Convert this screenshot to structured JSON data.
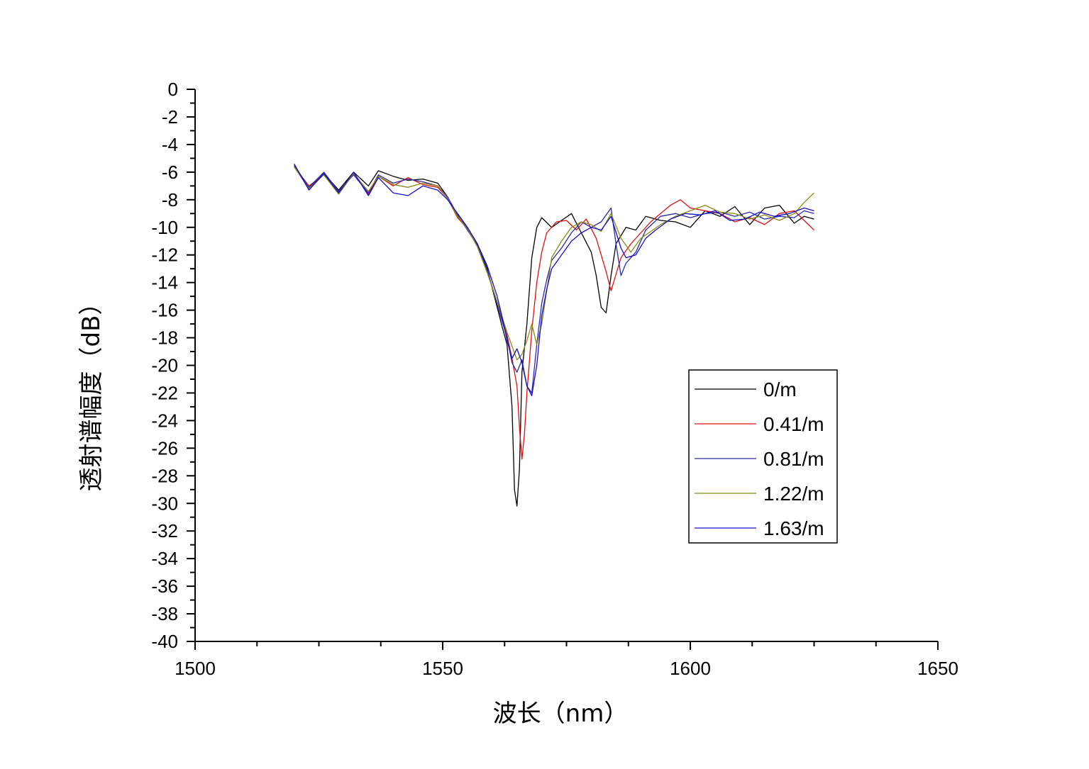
{
  "chart_data": {
    "type": "line",
    "title": "",
    "xlabel": "波长（nm）",
    "ylabel": "透射谱幅度（dB）",
    "xlim": [
      1500,
      1650
    ],
    "ylim": [
      -40,
      0
    ],
    "xticks": [
      "1500",
      "1550",
      "1600",
      "1650"
    ],
    "yticks": [
      "0",
      "-2",
      "-4",
      "-6",
      "-8",
      "-10",
      "-12",
      "-14",
      "-16",
      "-18",
      "-20",
      "-22",
      "-24",
      "-26",
      "-28",
      "-30",
      "-32",
      "-34",
      "-36",
      "-38",
      "-40"
    ],
    "grid": false,
    "legend_position": "right",
    "series": [
      {
        "name": "0/m",
        "color": "#000000",
        "points": [
          [
            1520,
            -5.6
          ],
          [
            1523,
            -7.2
          ],
          [
            1526,
            -6.1
          ],
          [
            1529,
            -7.3
          ],
          [
            1532,
            -6.0
          ],
          [
            1535,
            -7.0
          ],
          [
            1537,
            -5.9
          ],
          [
            1540,
            -6.3
          ],
          [
            1543,
            -6.6
          ],
          [
            1546,
            -6.5
          ],
          [
            1549,
            -6.8
          ],
          [
            1551,
            -7.8
          ],
          [
            1553,
            -9.2
          ],
          [
            1555,
            -10.0
          ],
          [
            1557,
            -11.2
          ],
          [
            1559,
            -13.0
          ],
          [
            1561,
            -15.8
          ],
          [
            1562,
            -17.2
          ],
          [
            1563,
            -18.5
          ],
          [
            1564,
            -23.0
          ],
          [
            1564.5,
            -29.0
          ],
          [
            1565,
            -30.2
          ],
          [
            1565.5,
            -27.5
          ],
          [
            1566,
            -20.5
          ],
          [
            1567,
            -17.0
          ],
          [
            1568,
            -12.2
          ],
          [
            1569,
            -10.0
          ],
          [
            1570,
            -9.3
          ],
          [
            1572,
            -10.0
          ],
          [
            1574,
            -9.5
          ],
          [
            1576,
            -9.0
          ],
          [
            1578,
            -10.4
          ],
          [
            1580,
            -11.8
          ],
          [
            1581,
            -13.5
          ],
          [
            1582,
            -15.8
          ],
          [
            1583,
            -16.2
          ],
          [
            1584,
            -13.5
          ],
          [
            1585,
            -11.2
          ],
          [
            1587,
            -10.0
          ],
          [
            1589,
            -10.2
          ],
          [
            1591,
            -9.2
          ],
          [
            1594,
            -9.5
          ],
          [
            1597,
            -9.6
          ],
          [
            1600,
            -10.0
          ],
          [
            1603,
            -8.8
          ],
          [
            1606,
            -9.2
          ],
          [
            1609,
            -8.5
          ],
          [
            1612,
            -9.8
          ],
          [
            1615,
            -8.6
          ],
          [
            1618,
            -8.4
          ],
          [
            1621,
            -9.7
          ],
          [
            1623,
            -9.2
          ],
          [
            1625,
            -9.4
          ]
        ]
      },
      {
        "name": "0.41/m",
        "color": "#e01010",
        "points": [
          [
            1520,
            -5.6
          ],
          [
            1523,
            -7.0
          ],
          [
            1526,
            -6.2
          ],
          [
            1529,
            -7.5
          ],
          [
            1532,
            -6.1
          ],
          [
            1535,
            -7.6
          ],
          [
            1537,
            -6.3
          ],
          [
            1540,
            -7.0
          ],
          [
            1543,
            -6.4
          ],
          [
            1546,
            -6.9
          ],
          [
            1549,
            -7.1
          ],
          [
            1551,
            -7.9
          ],
          [
            1553,
            -9.3
          ],
          [
            1555,
            -10.1
          ],
          [
            1557,
            -11.4
          ],
          [
            1559,
            -13.2
          ],
          [
            1561,
            -15.4
          ],
          [
            1562,
            -16.6
          ],
          [
            1563,
            -17.8
          ],
          [
            1564,
            -19.5
          ],
          [
            1565,
            -21.5
          ],
          [
            1565.5,
            -24.5
          ],
          [
            1566,
            -26.8
          ],
          [
            1566.5,
            -25.0
          ],
          [
            1567,
            -22.0
          ],
          [
            1568,
            -17.5
          ],
          [
            1569,
            -14.0
          ],
          [
            1570,
            -11.8
          ],
          [
            1571,
            -10.4
          ],
          [
            1573,
            -9.6
          ],
          [
            1575,
            -9.5
          ],
          [
            1577,
            -10.2
          ],
          [
            1579,
            -9.4
          ],
          [
            1581,
            -10.8
          ],
          [
            1582,
            -12.0
          ],
          [
            1583,
            -13.2
          ],
          [
            1584,
            -14.6
          ],
          [
            1585,
            -13.4
          ],
          [
            1586,
            -12.2
          ],
          [
            1588,
            -11.2
          ],
          [
            1590,
            -10.4
          ],
          [
            1592,
            -9.6
          ],
          [
            1594,
            -9.0
          ],
          [
            1596,
            -8.4
          ],
          [
            1598,
            -8.0
          ],
          [
            1600,
            -8.6
          ],
          [
            1603,
            -8.8
          ],
          [
            1606,
            -9.0
          ],
          [
            1609,
            -9.6
          ],
          [
            1612,
            -9.3
          ],
          [
            1615,
            -9.8
          ],
          [
            1618,
            -9.0
          ],
          [
            1621,
            -8.8
          ],
          [
            1623,
            -9.5
          ],
          [
            1625,
            -10.2
          ]
        ]
      },
      {
        "name": "0.81/m",
        "color": "#2a2aa8",
        "points": [
          [
            1520,
            -5.5
          ],
          [
            1523,
            -7.1
          ],
          [
            1526,
            -6.0
          ],
          [
            1529,
            -7.4
          ],
          [
            1532,
            -6.2
          ],
          [
            1535,
            -7.5
          ],
          [
            1537,
            -6.2
          ],
          [
            1540,
            -6.8
          ],
          [
            1543,
            -6.5
          ],
          [
            1546,
            -6.7
          ],
          [
            1549,
            -7.0
          ],
          [
            1551,
            -7.8
          ],
          [
            1553,
            -9.1
          ],
          [
            1555,
            -10.2
          ],
          [
            1557,
            -11.3
          ],
          [
            1559,
            -13.1
          ],
          [
            1561,
            -15.6
          ],
          [
            1562,
            -16.8
          ],
          [
            1563,
            -18.0
          ],
          [
            1564,
            -19.8
          ],
          [
            1565,
            -20.5
          ],
          [
            1566,
            -19.6
          ],
          [
            1567,
            -21.5
          ],
          [
            1568,
            -22.0
          ],
          [
            1569,
            -18.5
          ],
          [
            1570,
            -15.5
          ],
          [
            1571,
            -13.8
          ],
          [
            1572,
            -12.4
          ],
          [
            1574,
            -11.5
          ],
          [
            1576,
            -10.4
          ],
          [
            1578,
            -9.6
          ],
          [
            1580,
            -10.0
          ],
          [
            1582,
            -9.6
          ],
          [
            1584,
            -8.6
          ],
          [
            1585,
            -11.2
          ],
          [
            1586,
            -13.5
          ],
          [
            1587,
            -12.6
          ],
          [
            1589,
            -11.8
          ],
          [
            1591,
            -10.2
          ],
          [
            1594,
            -9.2
          ],
          [
            1597,
            -9.0
          ],
          [
            1600,
            -9.3
          ],
          [
            1603,
            -9.0
          ],
          [
            1606,
            -8.9
          ],
          [
            1609,
            -9.2
          ],
          [
            1612,
            -8.9
          ],
          [
            1615,
            -9.4
          ],
          [
            1618,
            -9.2
          ],
          [
            1621,
            -9.3
          ],
          [
            1623,
            -8.8
          ],
          [
            1625,
            -9.0
          ]
        ]
      },
      {
        "name": "1.22/m",
        "color": "#8a8a10",
        "points": [
          [
            1520,
            -5.6
          ],
          [
            1523,
            -7.2
          ],
          [
            1526,
            -6.2
          ],
          [
            1529,
            -7.6
          ],
          [
            1532,
            -6.1
          ],
          [
            1535,
            -7.4
          ],
          [
            1537,
            -6.3
          ],
          [
            1540,
            -6.9
          ],
          [
            1543,
            -7.1
          ],
          [
            1546,
            -6.8
          ],
          [
            1549,
            -7.0
          ],
          [
            1551,
            -7.9
          ],
          [
            1553,
            -9.2
          ],
          [
            1555,
            -10.1
          ],
          [
            1557,
            -11.4
          ],
          [
            1559,
            -13.3
          ],
          [
            1561,
            -15.4
          ],
          [
            1562,
            -16.5
          ],
          [
            1563,
            -17.6
          ],
          [
            1564,
            -18.6
          ],
          [
            1565,
            -19.6
          ],
          [
            1566,
            -19.2
          ],
          [
            1567,
            -18.2
          ],
          [
            1568,
            -17.0
          ],
          [
            1569,
            -18.5
          ],
          [
            1570,
            -17.0
          ],
          [
            1571,
            -14.6
          ],
          [
            1572,
            -12.2
          ],
          [
            1574,
            -11.0
          ],
          [
            1576,
            -10.0
          ],
          [
            1578,
            -9.6
          ],
          [
            1580,
            -9.8
          ],
          [
            1582,
            -10.3
          ],
          [
            1584,
            -9.0
          ],
          [
            1586,
            -10.8
          ],
          [
            1588,
            -11.8
          ],
          [
            1590,
            -10.8
          ],
          [
            1592,
            -10.3
          ],
          [
            1594,
            -9.8
          ],
          [
            1597,
            -9.2
          ],
          [
            1600,
            -8.8
          ],
          [
            1603,
            -8.4
          ],
          [
            1606,
            -8.9
          ],
          [
            1609,
            -9.0
          ],
          [
            1612,
            -9.4
          ],
          [
            1615,
            -9.1
          ],
          [
            1618,
            -9.5
          ],
          [
            1621,
            -9.0
          ],
          [
            1623,
            -8.2
          ],
          [
            1625,
            -7.5
          ]
        ]
      },
      {
        "name": "1.63/m",
        "color": "#1010d0",
        "points": [
          [
            1520,
            -5.4
          ],
          [
            1523,
            -7.3
          ],
          [
            1526,
            -6.1
          ],
          [
            1529,
            -7.5
          ],
          [
            1532,
            -6.0
          ],
          [
            1535,
            -7.7
          ],
          [
            1537,
            -6.4
          ],
          [
            1540,
            -7.5
          ],
          [
            1543,
            -7.7
          ],
          [
            1546,
            -7.0
          ],
          [
            1549,
            -7.3
          ],
          [
            1551,
            -8.0
          ],
          [
            1553,
            -9.0
          ],
          [
            1555,
            -10.0
          ],
          [
            1557,
            -11.2
          ],
          [
            1559,
            -12.8
          ],
          [
            1561,
            -15.0
          ],
          [
            1562,
            -16.5
          ],
          [
            1563,
            -18.2
          ],
          [
            1564,
            -19.5
          ],
          [
            1565,
            -18.8
          ],
          [
            1566,
            -19.8
          ],
          [
            1567,
            -21.5
          ],
          [
            1568,
            -22.2
          ],
          [
            1569,
            -20.0
          ],
          [
            1570,
            -16.4
          ],
          [
            1571,
            -14.5
          ],
          [
            1572,
            -13.0
          ],
          [
            1574,
            -12.0
          ],
          [
            1576,
            -11.0
          ],
          [
            1578,
            -10.4
          ],
          [
            1580,
            -10.0
          ],
          [
            1582,
            -10.2
          ],
          [
            1584,
            -9.2
          ],
          [
            1586,
            -11.5
          ],
          [
            1587,
            -12.2
          ],
          [
            1589,
            -12.0
          ],
          [
            1591,
            -10.8
          ],
          [
            1593,
            -10.2
          ],
          [
            1596,
            -9.4
          ],
          [
            1599,
            -9.0
          ],
          [
            1602,
            -9.1
          ],
          [
            1605,
            -8.8
          ],
          [
            1608,
            -9.5
          ],
          [
            1611,
            -9.4
          ],
          [
            1614,
            -8.9
          ],
          [
            1617,
            -9.2
          ],
          [
            1620,
            -9.0
          ],
          [
            1623,
            -8.6
          ],
          [
            1625,
            -8.8
          ]
        ]
      }
    ]
  }
}
